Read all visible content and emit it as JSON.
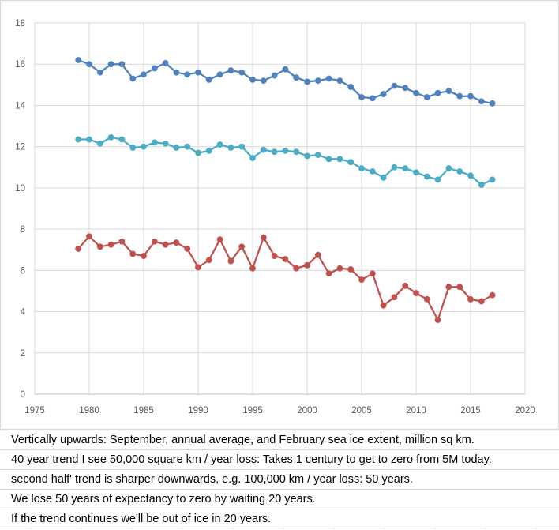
{
  "chart_data": {
    "type": "line",
    "title": "",
    "xlabel": "",
    "ylabel": "",
    "xlim": [
      1975,
      2020
    ],
    "ylim": [
      0,
      18
    ],
    "x_ticks": [
      1975,
      1980,
      1985,
      1990,
      1995,
      2000,
      2005,
      2010,
      2015,
      2020
    ],
    "y_ticks": [
      0,
      2,
      4,
      6,
      8,
      10,
      12,
      14,
      16,
      18
    ],
    "grid": true,
    "legend": "none",
    "x": [
      1979,
      1980,
      1981,
      1982,
      1983,
      1984,
      1985,
      1986,
      1987,
      1988,
      1989,
      1990,
      1991,
      1992,
      1993,
      1994,
      1995,
      1996,
      1997,
      1998,
      1999,
      2000,
      2001,
      2002,
      2003,
      2004,
      2005,
      2006,
      2007,
      2008,
      2009,
      2010,
      2011,
      2012,
      2013,
      2014,
      2015,
      2016,
      2017
    ],
    "series": [
      {
        "name": "February",
        "color": "#4f81bd",
        "values": [
          16.2,
          16.0,
          15.6,
          16.0,
          16.0,
          15.3,
          15.5,
          15.8,
          16.05,
          15.6,
          15.5,
          15.6,
          15.25,
          15.5,
          15.7,
          15.6,
          15.25,
          15.2,
          15.45,
          15.75,
          15.35,
          15.15,
          15.2,
          15.3,
          15.2,
          14.9,
          14.4,
          14.35,
          14.55,
          14.95,
          14.85,
          14.6,
          14.4,
          14.6,
          14.7,
          14.45,
          14.45,
          14.2,
          14.1
        ]
      },
      {
        "name": "Annual average",
        "color": "#4bacc6",
        "values": [
          12.35,
          12.35,
          12.15,
          12.45,
          12.35,
          11.95,
          12.0,
          12.2,
          12.15,
          11.95,
          12.0,
          11.7,
          11.8,
          12.1,
          11.95,
          12.0,
          11.45,
          11.85,
          11.75,
          11.8,
          11.75,
          11.55,
          11.6,
          11.4,
          11.4,
          11.25,
          10.95,
          10.8,
          10.5,
          11.0,
          10.95,
          10.75,
          10.55,
          10.4,
          10.95,
          10.8,
          10.6,
          10.15,
          10.4
        ]
      },
      {
        "name": "September",
        "color": "#c0504d",
        "values": [
          7.05,
          7.65,
          7.15,
          7.25,
          7.4,
          6.8,
          6.7,
          7.4,
          7.25,
          7.35,
          7.05,
          6.15,
          6.5,
          7.5,
          6.45,
          7.15,
          6.1,
          7.6,
          6.7,
          6.55,
          6.1,
          6.25,
          6.75,
          5.85,
          6.1,
          6.05,
          5.55,
          5.85,
          4.3,
          4.7,
          5.25,
          4.9,
          4.6,
          3.6,
          5.2,
          5.2,
          4.6,
          4.5,
          4.8
        ]
      }
    ]
  },
  "notes": [
    "Vertically upwards: September, annual average, and February sea ice extent, million sq km.",
    "40 year trend I see 50,000 square km / year loss: Takes 1 century to get to zero from 5M today.",
    "second half' trend is sharper downwards, e.g. 100,000 km / year loss: 50 years.",
    "We lose 50 years of expectancy to zero by waiting 20 years.",
    "If the trend continues we'll be out of ice in 20 years."
  ]
}
